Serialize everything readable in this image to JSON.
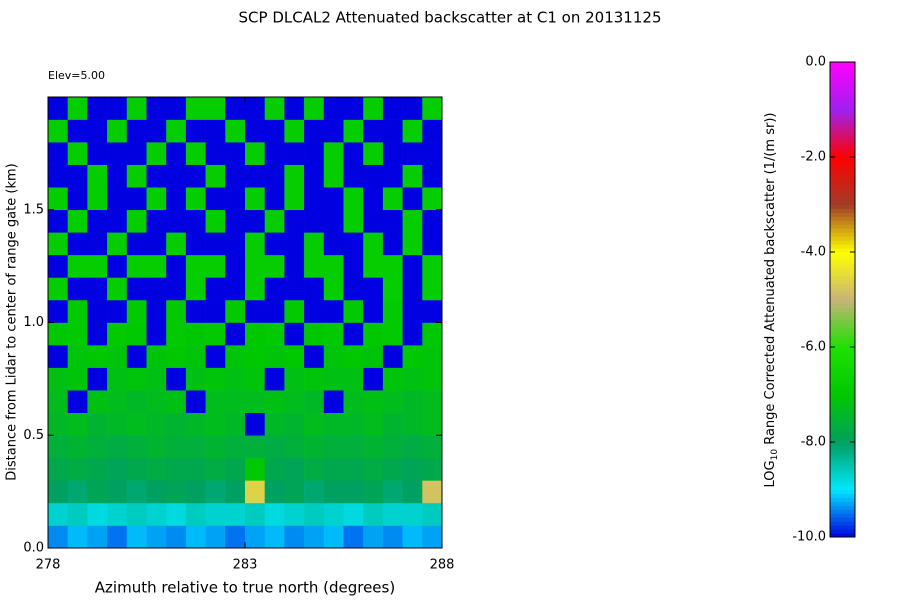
{
  "chart_data": {
    "type": "heatmap",
    "title": "SCP DLCAL2 Attenuated backscatter at C1 on 20131125",
    "annotation": "Elev=5.00",
    "xlabel": "Azimuth relative to true north (degrees)",
    "ylabel": "Distance from Lidar to center of range gate (km)",
    "colorbar_label": {
      "prefix": "LOG",
      "subscript": "10",
      "text": " Range Corrected Attenuated backscatter (1/(m sr))"
    },
    "xlim": [
      278,
      288
    ],
    "xticks": [
      278,
      283,
      288
    ],
    "ylim": [
      0,
      2.0
    ],
    "yticks": [
      {
        "value": 0,
        "label": "0.0"
      },
      0.5,
      {
        "value": 1,
        "label": "1.0"
      },
      1.5
    ],
    "zlim": [
      -10,
      0
    ],
    "zticks": [
      {
        "value": -10,
        "label": "-10.0"
      },
      {
        "value": -8,
        "label": "-8.0"
      },
      {
        "value": -6,
        "label": "-6.0"
      },
      {
        "value": -4,
        "label": "-4.0"
      },
      {
        "value": -2,
        "label": "-2.0"
      },
      {
        "value": 0,
        "label": "0.0"
      }
    ],
    "colormap": [
      "#0000e0",
      "#00e8ff",
      "#00a060",
      "#00c800",
      "#1ee000",
      "#c8b478",
      "#ffff00",
      "#a03c28",
      "#ff0000",
      "#a020f0",
      "#ff00ff"
    ],
    "xbins": [
      278,
      278.5,
      279,
      279.5,
      280,
      280.5,
      281,
      281.5,
      282,
      282.5,
      283,
      283.5,
      284,
      284.5,
      285,
      285.5,
      286,
      286.5,
      287,
      287.5,
      288
    ],
    "ybins": [
      0,
      0.1,
      0.2,
      0.3,
      0.4,
      0.5,
      0.6,
      0.7,
      0.8,
      0.9,
      1.0,
      1.1,
      1.2,
      1.3,
      1.4,
      1.5,
      1.6,
      1.7,
      1.8,
      1.9,
      2.0
    ],
    "z": [
      [
        -9.4,
        -9.2,
        -9.3,
        -9.5,
        -9.2,
        -9.3,
        -9.4,
        -9.2,
        -9.3,
        -9.5,
        -9.3,
        -9.2,
        -9.4,
        -9.3,
        -9.2,
        -9.5,
        -9.3,
        -9.4,
        -9.2,
        -9.3
      ],
      [
        -8.7,
        -8.6,
        -8.8,
        -8.7,
        -8.6,
        -8.7,
        -8.8,
        -8.6,
        -8.7,
        -8.7,
        -8.6,
        -8.8,
        -8.7,
        -8.6,
        -8.7,
        -8.8,
        -8.6,
        -8.7,
        -8.7,
        -8.6
      ],
      [
        -8.0,
        -8.1,
        -7.9,
        -8.0,
        -8.1,
        -8.0,
        -7.9,
        -8.0,
        -8.1,
        -8.0,
        -4.6,
        -8.0,
        -7.9,
        -8.1,
        -8.0,
        -8.0,
        -7.9,
        -8.1,
        -8.0,
        -4.8
      ],
      [
        -7.8,
        -7.7,
        -7.8,
        -7.9,
        -7.8,
        -7.7,
        -7.8,
        -7.8,
        -7.7,
        -7.8,
        -7.0,
        -7.8,
        -7.9,
        -7.7,
        -7.8,
        -7.8,
        -7.7,
        -7.8,
        -7.9,
        -7.8
      ],
      [
        -7.6,
        -7.5,
        -7.6,
        -7.7,
        -7.6,
        -7.5,
        -7.6,
        -7.6,
        -7.5,
        -7.6,
        -7.6,
        -7.7,
        -7.6,
        -7.5,
        -7.6,
        -7.6,
        -7.5,
        -7.6,
        -7.7,
        -7.6
      ],
      [
        -7.4,
        -7.3,
        -7.5,
        -7.4,
        -7.3,
        -7.4,
        -7.5,
        -7.4,
        -7.3,
        -7.4,
        -10,
        -7.4,
        -7.5,
        -7.3,
        -7.4,
        -7.4,
        -7.3,
        -7.5,
        -7.4,
        -7.3
      ],
      [
        -7.3,
        -10,
        -7.2,
        -7.3,
        -7.4,
        -7.3,
        -7.2,
        -10,
        -7.3,
        -7.3,
        -7.3,
        -7.2,
        -7.3,
        -7.4,
        -10,
        -7.3,
        -7.2,
        -7.3,
        -7.4,
        -7.3
      ],
      [
        -7.2,
        -7.1,
        -10,
        -7.2,
        -7.1,
        -7.2,
        -10,
        -7.2,
        -7.1,
        -7.2,
        -7.1,
        -10,
        -7.2,
        -7.1,
        -7.2,
        -7.2,
        -10,
        -7.1,
        -7.2,
        -7.1
      ],
      [
        -10,
        -7.1,
        -7.0,
        -7.1,
        -10,
        -7.1,
        -7.0,
        -7.1,
        -10,
        -7.1,
        -7.0,
        -7.1,
        -7.0,
        -10,
        -7.1,
        -7.0,
        -7.1,
        -10,
        -7.0,
        -7.1
      ],
      [
        -7.0,
        -6.9,
        -10,
        -6.9,
        -7.0,
        -10,
        -6.9,
        -7.0,
        -6.9,
        -10,
        -7.0,
        -6.9,
        -10,
        -7.0,
        -6.9,
        -10,
        -7.0,
        -6.9,
        -10,
        -7.0
      ],
      [
        -10,
        -6.9,
        -10,
        -10,
        -6.9,
        -10,
        -6.9,
        -10,
        -10,
        -6.9,
        -10,
        -10,
        -6.9,
        -10,
        -10,
        -6.9,
        -10,
        -6.9,
        -10,
        -10
      ],
      [
        -6.8,
        -10,
        -10,
        -6.8,
        -10,
        -10,
        -10,
        -6.8,
        -10,
        -10,
        -6.8,
        -10,
        -10,
        -10,
        -6.8,
        -10,
        -10,
        -6.8,
        -10,
        -6.8
      ],
      [
        -10,
        -6.8,
        -6.8,
        -10,
        -6.8,
        -6.8,
        -10,
        -6.8,
        -6.8,
        -10,
        -6.8,
        -6.8,
        -10,
        -6.8,
        -6.8,
        -10,
        -6.8,
        -6.8,
        -10,
        -6.8
      ],
      [
        -6.8,
        -10,
        -10,
        -6.8,
        -10,
        -10,
        -6.8,
        -10,
        -10,
        -10,
        -6.8,
        -10,
        -10,
        -6.8,
        -10,
        -10,
        -6.8,
        -10,
        -6.8,
        -10
      ],
      [
        -10,
        -6.8,
        -10,
        -10,
        -6.8,
        -10,
        -10,
        -10,
        -6.8,
        -10,
        -10,
        -6.8,
        -10,
        -10,
        -10,
        -6.8,
        -10,
        -10,
        -6.8,
        -10
      ],
      [
        -6.8,
        -10,
        -6.8,
        -10,
        -10,
        -6.8,
        -10,
        -6.8,
        -10,
        -10,
        -6.8,
        -10,
        -6.8,
        -10,
        -10,
        -6.8,
        -10,
        -6.8,
        -10,
        -6.8
      ],
      [
        -10,
        -10,
        -6.8,
        -10,
        -6.8,
        -10,
        -10,
        -10,
        -6.8,
        -10,
        -10,
        -10,
        -6.8,
        -10,
        -6.8,
        -10,
        -10,
        -10,
        -6.8,
        -10
      ],
      [
        -10,
        -6.8,
        -10,
        -10,
        -10,
        -6.8,
        -10,
        -6.8,
        -10,
        -10,
        -6.8,
        -10,
        -10,
        -10,
        -6.8,
        -10,
        -6.8,
        -10,
        -10,
        -10
      ],
      [
        -6.8,
        -10,
        -10,
        -6.8,
        -10,
        -10,
        -6.8,
        -10,
        -10,
        -6.8,
        -10,
        -10,
        -6.8,
        -10,
        -10,
        -6.8,
        -10,
        -10,
        -6.8,
        -10
      ],
      [
        -10,
        -6.8,
        -10,
        -10,
        -6.8,
        -10,
        -10,
        -6.8,
        -6.8,
        -10,
        -10,
        -6.8,
        -10,
        -6.8,
        -10,
        -10,
        -6.8,
        -10,
        -10,
        -6.8
      ]
    ]
  }
}
